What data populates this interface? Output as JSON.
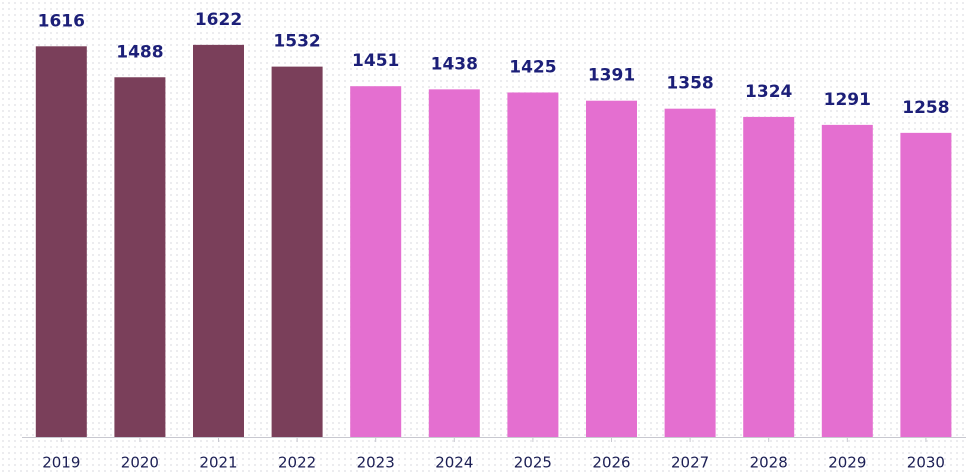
{
  "chart_data": {
    "type": "bar",
    "categories": [
      "2019",
      "2020",
      "2021",
      "2022",
      "2023",
      "2024",
      "2025",
      "2026",
      "2027",
      "2028",
      "2029",
      "2030"
    ],
    "values": [
      1616,
      1488,
      1622,
      1532,
      1451,
      1438,
      1425,
      1391,
      1358,
      1324,
      1291,
      1258
    ],
    "colors": [
      "#7a3f5a",
      "#7a3f5a",
      "#7a3f5a",
      "#7a3f5a",
      "#e46fd0",
      "#e46fd0",
      "#e46fd0",
      "#e46fd0",
      "#e46fd0",
      "#e46fd0",
      "#e46fd0",
      "#e46fd0"
    ],
    "ylim": [
      0,
      1700
    ]
  }
}
